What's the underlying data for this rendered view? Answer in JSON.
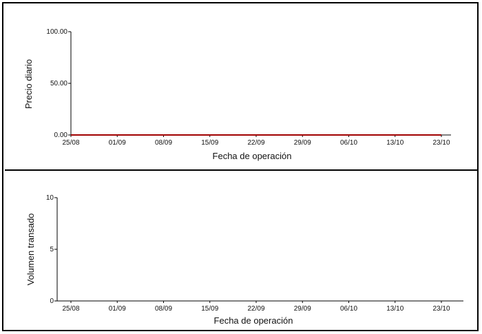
{
  "chart_data": [
    {
      "type": "line",
      "ylabel": "Precio diario",
      "xlabel": "Fecha de operación",
      "ylim": [
        0,
        100
      ],
      "yticks": [
        "0.00",
        "50.00",
        "100.00"
      ],
      "ytick_values": [
        0,
        50,
        100
      ],
      "categories": [
        "25/08",
        "01/09",
        "08/09",
        "15/09",
        "22/09",
        "29/09",
        "06/10",
        "13/10",
        "23/10"
      ],
      "series": [
        {
          "values": [
            0,
            0,
            0,
            0,
            0,
            0,
            0,
            0,
            0
          ],
          "color": "#a00000"
        }
      ],
      "grid": false
    },
    {
      "type": "bar",
      "ylabel": "Volumen transado",
      "xlabel": "Fecha de operación",
      "ylim": [
        0,
        10
      ],
      "yticks": [
        "0",
        "5",
        "10"
      ],
      "ytick_values": [
        0,
        5,
        10
      ],
      "categories": [
        "25/08",
        "01/09",
        "08/09",
        "15/09",
        "22/09",
        "29/09",
        "06/10",
        "13/10",
        "23/10"
      ],
      "values": [
        0,
        0,
        0,
        0,
        0,
        0,
        0,
        0,
        0
      ],
      "grid": false
    }
  ]
}
